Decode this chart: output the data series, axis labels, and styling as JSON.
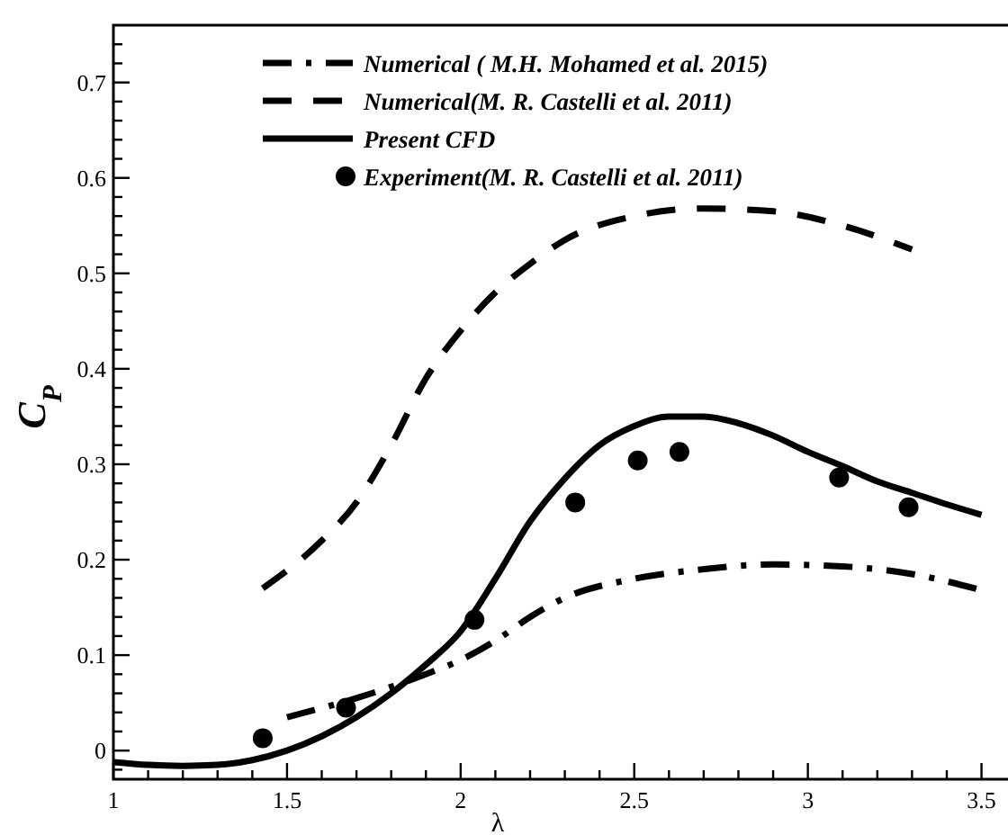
{
  "chart_data": {
    "type": "line",
    "xlabel": "λ",
    "ylabel": "C$_{P}$",
    "xlim": [
      1,
      3.68
    ],
    "ylim": [
      -0.03,
      0.76
    ],
    "xticks": [
      1,
      {
        "value": 1.1,
        "label": null
      },
      {
        "value": 1.2,
        "label": null
      },
      {
        "value": 1.3,
        "label": null
      },
      {
        "value": 1.4,
        "label": null
      },
      1.5,
      {
        "value": 1.6,
        "label": null
      },
      {
        "value": 1.7,
        "label": null
      },
      {
        "value": 1.8,
        "label": null
      },
      {
        "value": 1.9,
        "label": null
      },
      2,
      {
        "value": 2.1,
        "label": null
      },
      {
        "value": 2.2,
        "label": null
      },
      {
        "value": 2.3,
        "label": null
      },
      {
        "value": 2.4,
        "label": null
      },
      2.5,
      {
        "value": 2.6,
        "label": null
      },
      {
        "value": 2.7,
        "label": null
      },
      {
        "value": 2.8,
        "label": null
      },
      {
        "value": 2.9,
        "label": null
      },
      3,
      {
        "value": 3.1,
        "label": null
      },
      {
        "value": 3.2,
        "label": null
      },
      {
        "value": 3.3,
        "label": null
      },
      {
        "value": 3.4,
        "label": null
      },
      3.5,
      {
        "value": 3.6,
        "label": null
      }
    ],
    "yticks": [
      {
        "value": -0.02,
        "label": null
      },
      0,
      {
        "value": 0.02,
        "label": null
      },
      {
        "value": 0.04,
        "label": null
      },
      {
        "value": 0.06,
        "label": null
      },
      {
        "value": 0.08,
        "label": null
      },
      0.1,
      {
        "value": 0.12,
        "label": null
      },
      {
        "value": 0.14,
        "label": null
      },
      {
        "value": 0.16,
        "label": null
      },
      {
        "value": 0.18,
        "label": null
      },
      0.2,
      {
        "value": 0.22,
        "label": null
      },
      {
        "value": 0.24,
        "label": null
      },
      {
        "value": 0.26,
        "label": null
      },
      {
        "value": 0.28,
        "label": null
      },
      0.3,
      {
        "value": 0.32,
        "label": null
      },
      {
        "value": 0.34,
        "label": null
      },
      {
        "value": 0.36,
        "label": null
      },
      {
        "value": 0.38,
        "label": null
      },
      0.4,
      {
        "value": 0.42,
        "label": null
      },
      {
        "value": 0.44,
        "label": null
      },
      {
        "value": 0.46,
        "label": null
      },
      {
        "value": 0.48,
        "label": null
      },
      0.5,
      {
        "value": 0.52,
        "label": null
      },
      {
        "value": 0.54,
        "label": null
      },
      {
        "value": 0.56,
        "label": null
      },
      {
        "value": 0.58,
        "label": null
      },
      0.6,
      {
        "value": 0.62,
        "label": null
      },
      {
        "value": 0.64,
        "label": null
      },
      {
        "value": 0.66,
        "label": null
      },
      {
        "value": 0.68,
        "label": null
      },
      0.7,
      {
        "value": 0.72,
        "label": null
      },
      {
        "value": 0.74,
        "label": null
      }
    ],
    "grid": false,
    "legend": "top",
    "series": [
      {
        "name": "Numerical ( M.H. Mohamed et al. 2015)",
        "color": "#000000",
        "line_style": "dashdot",
        "x": [
          1.5,
          1.7,
          1.9,
          2.0,
          2.1,
          2.2,
          2.3,
          2.5,
          2.7,
          2.9,
          3.1,
          3.3,
          3.5
        ],
        "values": [
          0.035,
          0.055,
          0.08,
          0.095,
          0.115,
          0.14,
          0.16,
          0.18,
          0.19,
          0.195,
          0.193,
          0.185,
          0.168
        ]
      },
      {
        "name": "Numerical(M. R. Castelli et al. 2011)",
        "color": "#000000",
        "line_style": "dashed",
        "x": [
          1.43,
          1.6,
          1.7,
          1.8,
          1.9,
          2.0,
          2.1,
          2.2,
          2.3,
          2.5,
          2.7,
          2.9,
          3.1,
          3.3
        ],
        "values": [
          0.17,
          0.22,
          0.26,
          0.32,
          0.39,
          0.44,
          0.48,
          0.51,
          0.535,
          0.56,
          0.568,
          0.565,
          0.55,
          0.525
        ]
      },
      {
        "name": "Present CFD",
        "color": "#000000",
        "line_style": "solid",
        "x": [
          1,
          1.1,
          1.2,
          1.3,
          1.4,
          1.5,
          1.6,
          1.7,
          1.8,
          1.9,
          2.0,
          2.1,
          2.2,
          2.3,
          2.4,
          2.5,
          2.6,
          2.7,
          2.8,
          2.9,
          3.0,
          3.1,
          3.2,
          3.3,
          3.4,
          3.5
        ],
        "values": [
          -0.012,
          -0.015,
          -0.016,
          -0.015,
          -0.01,
          0,
          0.015,
          0.035,
          0.06,
          0.09,
          0.125,
          0.18,
          0.24,
          0.285,
          0.32,
          0.34,
          0.35,
          0.35,
          0.343,
          0.33,
          0.313,
          0.298,
          0.282,
          0.27,
          0.258,
          0.247
        ]
      },
      {
        "name": "Experiment(M. R. Castelli et al. 2011)",
        "type": "scatter",
        "color": "#000000",
        "marker": "circle",
        "x": [
          1.43,
          1.67,
          2.04,
          2.33,
          2.51,
          2.63,
          3.09,
          3.29
        ],
        "values": [
          0.013,
          0.045,
          0.137,
          0.26,
          0.304,
          0.313,
          0.286,
          0.255
        ]
      }
    ]
  }
}
